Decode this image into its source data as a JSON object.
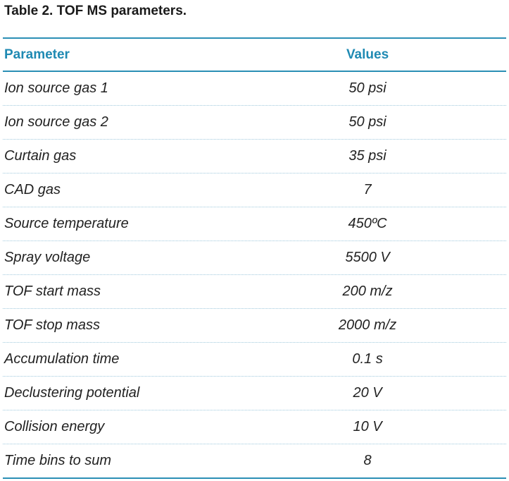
{
  "caption": "Table 2. TOF MS parameters.",
  "table": {
    "headers": {
      "parameter": "Parameter",
      "values": "Values"
    },
    "rows": [
      {
        "parameter": "Ion source gas 1",
        "value": "50 psi"
      },
      {
        "parameter": "Ion source gas 2",
        "value": "50 psi"
      },
      {
        "parameter": "Curtain gas",
        "value": "35 psi"
      },
      {
        "parameter": "CAD gas",
        "value": "7"
      },
      {
        "parameter": "Source temperature",
        "value": "450ºC"
      },
      {
        "parameter": "Spray voltage",
        "value": "5500 V"
      },
      {
        "parameter": "TOF start mass",
        "value": "200 m/z"
      },
      {
        "parameter": "TOF stop mass",
        "value": "2000 m/z"
      },
      {
        "parameter": "Accumulation time",
        "value": "0.1 s"
      },
      {
        "parameter": "Declustering potential",
        "value": "20 V"
      },
      {
        "parameter": "Collision energy",
        "value": "10 V"
      },
      {
        "parameter": "Time bins to sum",
        "value": "8"
      }
    ]
  },
  "colors": {
    "header_text": "#1f8ab3",
    "rule": "#2b8fb5",
    "row_divider": "#9fc9dd"
  }
}
